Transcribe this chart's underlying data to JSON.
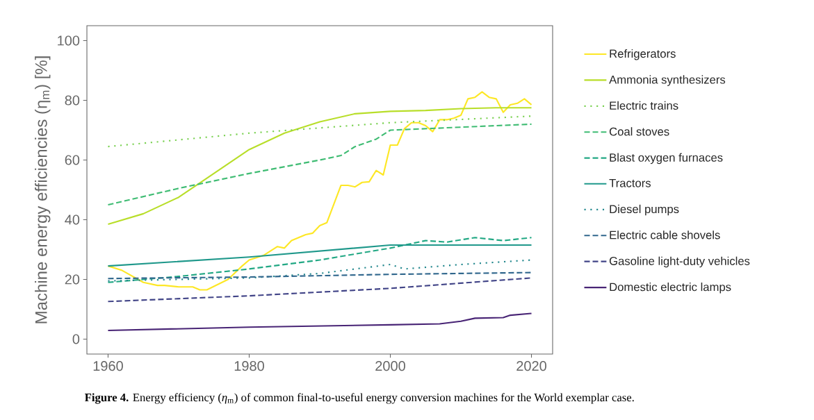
{
  "chart_data": {
    "type": "line",
    "ylabel": "Machine energy efficiencies (η$_{m}$) [%]",
    "xlim": [
      1957,
      2023
    ],
    "ylim": [
      -5,
      105
    ],
    "xticks": [
      1960,
      1980,
      2000,
      2020
    ],
    "yticks": [
      0,
      20,
      40,
      60,
      80,
      100
    ],
    "legend": "right",
    "annotations": [
      "**Figure 4.** Energy efficiency (*η*$_{m}$) of common final-to-useful energy conversion machines for the World exemplar case."
    ],
    "series": [
      {
        "name": "Refrigerators",
        "color": "#fde725",
        "line_style": "solid",
        "x": [
          1960,
          1962,
          1965,
          1967,
          1968,
          1970,
          1972,
          1973,
          1974,
          1977,
          1979,
          1980,
          1982,
          1984,
          1985,
          1986,
          1988,
          1989,
          1990,
          1991,
          1993,
          1994,
          1995,
          1996,
          1997,
          1998,
          1999,
          2000,
          2001,
          2002,
          2003,
          2004,
          2005,
          2006,
          2007,
          2008,
          2009,
          2010,
          2011,
          2012,
          2013,
          2014,
          2015,
          2016,
          2017,
          2018,
          2019,
          2020
        ],
        "values": [
          24.5,
          23,
          19,
          18,
          18,
          17.5,
          17.5,
          16.5,
          16.5,
          20,
          24.5,
          26.5,
          28,
          31,
          30.5,
          33,
          35,
          35.5,
          38,
          39,
          51.5,
          51.5,
          51,
          52.5,
          52.7,
          56.5,
          55,
          65,
          65,
          70.5,
          72.5,
          72.5,
          71.5,
          69.5,
          73.5,
          73.5,
          74,
          75,
          80.5,
          81,
          82.8,
          81,
          80.5,
          76,
          78.5,
          79,
          80.5,
          78.5
        ]
      },
      {
        "name": "Ammonia synthesizers",
        "color": "#b8de29",
        "line_style": "solid",
        "x": [
          1960,
          1965,
          1970,
          1975,
          1980,
          1985,
          1990,
          1995,
          2000,
          2005,
          2010,
          2015,
          2020
        ],
        "values": [
          38.5,
          42,
          47.5,
          55.5,
          63.5,
          69,
          72.8,
          75.5,
          76.3,
          76.6,
          77.2,
          77.5,
          77.5
        ]
      },
      {
        "name": "Electric trains",
        "color": "#7ad151",
        "line_style": "dotted",
        "x": [
          1960,
          1980,
          2000,
          2020
        ],
        "values": [
          64.5,
          69,
          72.5,
          74.7
        ]
      },
      {
        "name": "Coal stoves",
        "color": "#3fbc73",
        "line_style": "dashed",
        "x": [
          1960,
          1970,
          1980,
          1990,
          1993,
          1995,
          1998,
          2000,
          2010,
          2020
        ],
        "values": [
          45,
          50.5,
          55.5,
          60,
          61.5,
          64.5,
          67,
          70,
          71,
          72
        ]
      },
      {
        "name": "Blast oxygen furnaces",
        "color": "#22a884",
        "line_style": "dashed",
        "x": [
          1960,
          1970,
          1980,
          1990,
          2000,
          2005,
          2008,
          2012,
          2014,
          2016,
          2018,
          2020
        ],
        "values": [
          19,
          21,
          23.5,
          26.5,
          30.5,
          33,
          32.5,
          34,
          33.5,
          33,
          33.5,
          34
        ]
      },
      {
        "name": "Tractors",
        "color": "#1f988b",
        "line_style": "solid",
        "x": [
          1960,
          1980,
          2000,
          2020
        ],
        "values": [
          24.5,
          27.5,
          31.5,
          31.5
        ]
      },
      {
        "name": "Diesel pumps",
        "color": "#23888e",
        "line_style": "dotted",
        "x": [
          1960,
          1980,
          1990,
          1995,
          2000,
          2002,
          2010,
          2020
        ],
        "values": [
          19.5,
          20.5,
          22,
          23.5,
          25,
          23.5,
          25,
          26.5
        ]
      },
      {
        "name": "Electric cable shovels",
        "color": "#30678d",
        "line_style": "dashed",
        "x": [
          1960,
          1980,
          2000,
          2020
        ],
        "values": [
          20.3,
          20.8,
          21.7,
          22.3
        ]
      },
      {
        "name": "Gasoline light-duty vehicles",
        "color": "#414487",
        "line_style": "dashed",
        "x": [
          1960,
          1980,
          2000,
          2020
        ],
        "values": [
          12.6,
          14.5,
          17,
          20.5
        ]
      },
      {
        "name": "Domestic electric lamps",
        "color": "#482475",
        "line_style": "solid",
        "x": [
          1960,
          1980,
          2000,
          2007,
          2010,
          2012,
          2016,
          2017,
          2020
        ],
        "values": [
          2.9,
          4,
          4.8,
          5.1,
          6,
          7,
          7.2,
          8,
          8.6
        ]
      }
    ]
  }
}
